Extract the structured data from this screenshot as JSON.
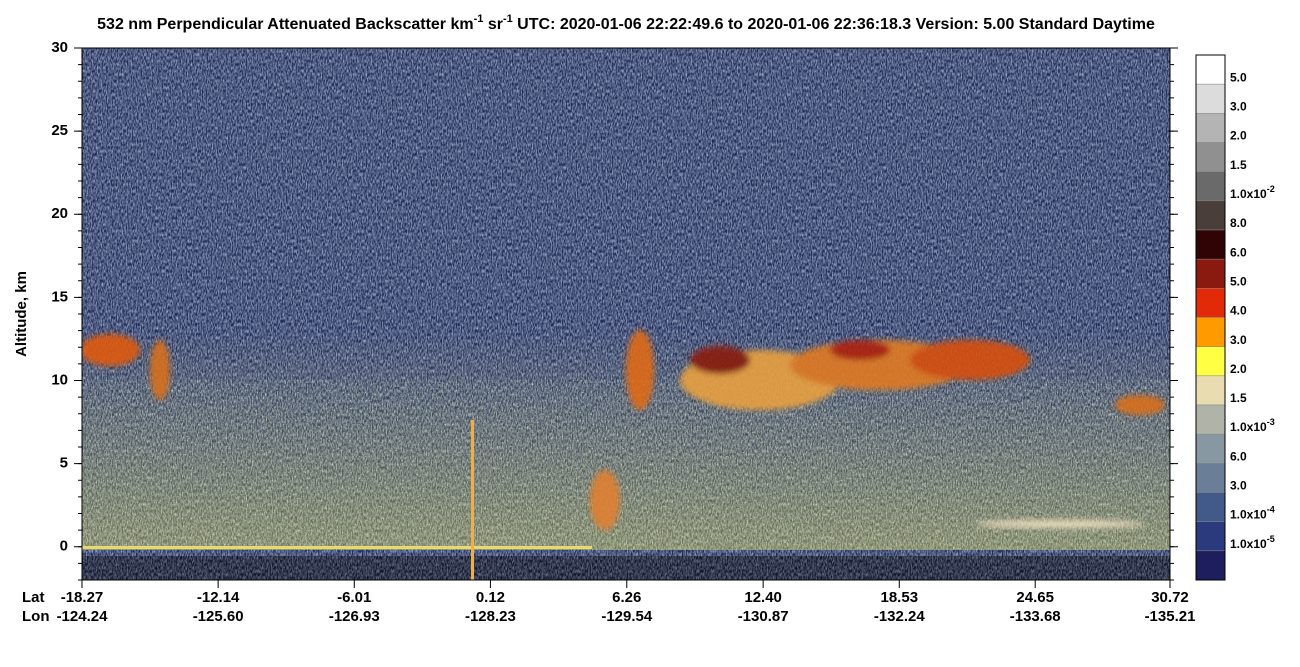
{
  "chart_data": {
    "type": "heatmap",
    "title": [
      "532 nm Perpendicular Attenuated Backscatter km",
      "-1",
      " sr",
      "-1",
      "  UTC: 2020-01-06 22:22:49.6 to 2020-01-06 22:36:18.3  Version: 5.00 Standard Daytime"
    ],
    "y_label": "Altitude, km",
    "ylim": [
      -2,
      30
    ],
    "yticks": [
      0,
      5,
      10,
      15,
      20,
      25,
      30
    ],
    "xlim": [
      -18.27,
      30.72
    ],
    "xticks": [
      -18.27,
      -12.14,
      -6.01,
      0.12,
      6.26,
      {
        "value": 12.4,
        "label": "12.40"
      },
      18.53,
      24.65,
      30.72
    ],
    "x_label": "Lat",
    "x2_label": "Lon",
    "x2_labels": [
      "-124.24",
      "-125.60",
      "-126.93",
      "-128.23",
      "-129.54",
      "-130.87",
      "-132.24",
      "-133.68",
      "-135.21"
    ],
    "colorbar": {
      "colors": [
        "#ffffff",
        "#dcdcdc",
        "#b4b4b4",
        "#909090",
        "#6a6a6a",
        "#4a3e3a",
        "#300404",
        "#8a1a10",
        "#e22a08",
        "#ff9a00",
        "#ffff44",
        "#e8dcb0",
        "#b0b4a8",
        "#8898a2",
        "#6a7e98",
        "#425a8a",
        "#2a3a7c",
        "#1e1e5e",
        "#000000"
      ],
      "labels": [
        "5.0",
        "3.0",
        "2.0",
        "1.5",
        {
          "base": "1.0x10",
          "exp": "-2"
        },
        "8.0",
        "6.0",
        "5.0",
        "4.0",
        "3.0",
        "2.0",
        "1.5",
        {
          "base": "1.0x10",
          "exp": "-3"
        },
        "6.0",
        "3.0",
        {
          "base": "1.0x10",
          "exp": "-4"
        },
        {
          "base": "1.0x10",
          "exp": "-5"
        }
      ]
    }
  }
}
